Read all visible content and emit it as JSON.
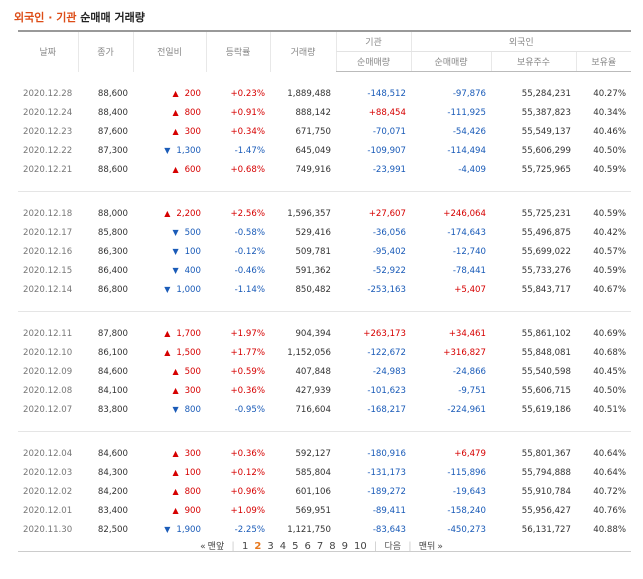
{
  "title": {
    "highlight": "외국인 · 기관",
    "rest": "순매매 거래량"
  },
  "headers": {
    "date": "날짜",
    "close": "종가",
    "change": "전일비",
    "rate": "등락률",
    "volume": "거래량",
    "inst_group": "기관",
    "inst_net": "순매매량",
    "foreign_group": "외국인",
    "foreign_net": "순매매량",
    "foreign_shares": "보유주수",
    "foreign_ratio": "보유율"
  },
  "groups": [
    [
      {
        "date": "2020.12.28",
        "close": "88,600",
        "dir": "up",
        "change": "200",
        "rate": "+0.23%",
        "volume": "1,889,488",
        "inst": "-148,512",
        "foreign": "-97,876",
        "shares": "55,284,231",
        "ratio": "40.27%"
      },
      {
        "date": "2020.12.24",
        "close": "88,400",
        "dir": "up",
        "change": "800",
        "rate": "+0.91%",
        "volume": "888,142",
        "inst": "+88,454",
        "foreign": "-111,925",
        "shares": "55,387,823",
        "ratio": "40.34%"
      },
      {
        "date": "2020.12.23",
        "close": "87,600",
        "dir": "up",
        "change": "300",
        "rate": "+0.34%",
        "volume": "671,750",
        "inst": "-70,071",
        "foreign": "-54,426",
        "shares": "55,549,137",
        "ratio": "40.46%"
      },
      {
        "date": "2020.12.22",
        "close": "87,300",
        "dir": "down",
        "change": "1,300",
        "rate": "-1.47%",
        "volume": "645,049",
        "inst": "-109,907",
        "foreign": "-114,494",
        "shares": "55,606,299",
        "ratio": "40.50%"
      },
      {
        "date": "2020.12.21",
        "close": "88,600",
        "dir": "up",
        "change": "600",
        "rate": "+0.68%",
        "volume": "749,916",
        "inst": "-23,991",
        "foreign": "-4,409",
        "shares": "55,725,965",
        "ratio": "40.59%"
      }
    ],
    [
      {
        "date": "2020.12.18",
        "close": "88,000",
        "dir": "up",
        "change": "2,200",
        "rate": "+2.56%",
        "volume": "1,596,357",
        "inst": "+27,607",
        "foreign": "+246,064",
        "shares": "55,725,231",
        "ratio": "40.59%"
      },
      {
        "date": "2020.12.17",
        "close": "85,800",
        "dir": "down",
        "change": "500",
        "rate": "-0.58%",
        "volume": "529,416",
        "inst": "-36,056",
        "foreign": "-174,643",
        "shares": "55,496,875",
        "ratio": "40.42%"
      },
      {
        "date": "2020.12.16",
        "close": "86,300",
        "dir": "down",
        "change": "100",
        "rate": "-0.12%",
        "volume": "509,781",
        "inst": "-95,402",
        "foreign": "-12,740",
        "shares": "55,699,022",
        "ratio": "40.57%"
      },
      {
        "date": "2020.12.15",
        "close": "86,400",
        "dir": "down",
        "change": "400",
        "rate": "-0.46%",
        "volume": "591,362",
        "inst": "-52,922",
        "foreign": "-78,441",
        "shares": "55,733,276",
        "ratio": "40.59%"
      },
      {
        "date": "2020.12.14",
        "close": "86,800",
        "dir": "down",
        "change": "1,000",
        "rate": "-1.14%",
        "volume": "850,482",
        "inst": "-253,163",
        "foreign": "+5,407",
        "shares": "55,843,717",
        "ratio": "40.67%"
      }
    ],
    [
      {
        "date": "2020.12.11",
        "close": "87,800",
        "dir": "up",
        "change": "1,700",
        "rate": "+1.97%",
        "volume": "904,394",
        "inst": "+263,173",
        "foreign": "+34,461",
        "shares": "55,861,102",
        "ratio": "40.69%"
      },
      {
        "date": "2020.12.10",
        "close": "86,100",
        "dir": "up",
        "change": "1,500",
        "rate": "+1.77%",
        "volume": "1,152,056",
        "inst": "-122,672",
        "foreign": "+316,827",
        "shares": "55,848,081",
        "ratio": "40.68%"
      },
      {
        "date": "2020.12.09",
        "close": "84,600",
        "dir": "up",
        "change": "500",
        "rate": "+0.59%",
        "volume": "407,848",
        "inst": "-24,983",
        "foreign": "-24,866",
        "shares": "55,540,598",
        "ratio": "40.45%"
      },
      {
        "date": "2020.12.08",
        "close": "84,100",
        "dir": "up",
        "change": "300",
        "rate": "+0.36%",
        "volume": "427,939",
        "inst": "-101,623",
        "foreign": "-9,751",
        "shares": "55,606,715",
        "ratio": "40.50%"
      },
      {
        "date": "2020.12.07",
        "close": "83,800",
        "dir": "down",
        "change": "800",
        "rate": "-0.95%",
        "volume": "716,604",
        "inst": "-168,217",
        "foreign": "-224,961",
        "shares": "55,619,186",
        "ratio": "40.51%"
      }
    ],
    [
      {
        "date": "2020.12.04",
        "close": "84,600",
        "dir": "up",
        "change": "300",
        "rate": "+0.36%",
        "volume": "592,127",
        "inst": "-180,916",
        "foreign": "+6,479",
        "shares": "55,801,367",
        "ratio": "40.64%"
      },
      {
        "date": "2020.12.03",
        "close": "84,300",
        "dir": "up",
        "change": "100",
        "rate": "+0.12%",
        "volume": "585,804",
        "inst": "-131,173",
        "foreign": "-115,896",
        "shares": "55,794,888",
        "ratio": "40.64%"
      },
      {
        "date": "2020.12.02",
        "close": "84,200",
        "dir": "up",
        "change": "800",
        "rate": "+0.96%",
        "volume": "601,106",
        "inst": "-189,272",
        "foreign": "-19,643",
        "shares": "55,910,784",
        "ratio": "40.72%"
      },
      {
        "date": "2020.12.01",
        "close": "83,400",
        "dir": "up",
        "change": "900",
        "rate": "+1.09%",
        "volume": "569,951",
        "inst": "-89,411",
        "foreign": "-158,240",
        "shares": "55,956,427",
        "ratio": "40.76%"
      },
      {
        "date": "2020.11.30",
        "close": "82,500",
        "dir": "down",
        "change": "1,900",
        "rate": "-2.25%",
        "volume": "1,121,750",
        "inst": "-83,643",
        "foreign": "-450,273",
        "shares": "56,131,727",
        "ratio": "40.88%"
      }
    ]
  ],
  "pager": {
    "first": "맨앞",
    "pages": [
      "1",
      "2",
      "3",
      "4",
      "5",
      "6",
      "7",
      "8",
      "9",
      "10"
    ],
    "current": "2",
    "next": "다음",
    "last": "맨뒤"
  },
  "colors": {
    "up": "#d60000",
    "down": "#1a5bb8",
    "accent": "#dd4c16",
    "current_page": "#e7781d"
  },
  "icons": {
    "up": "▲",
    "down": "▼",
    "first": "«",
    "last": "»"
  }
}
